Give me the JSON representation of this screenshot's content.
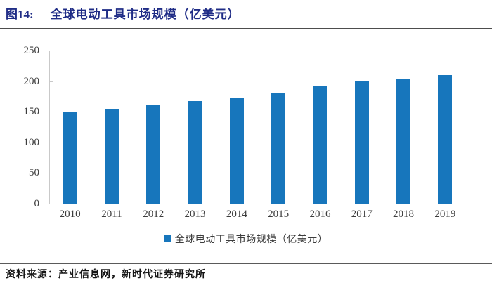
{
  "header": {
    "figure_label": "图14:",
    "title": "全球电动工具市场规模（亿美元）"
  },
  "chart_data": {
    "type": "bar",
    "categories": [
      "2010",
      "2011",
      "2012",
      "2013",
      "2014",
      "2015",
      "2016",
      "2017",
      "2018",
      "2019"
    ],
    "values": [
      150,
      155,
      160,
      167,
      172,
      181,
      193,
      200,
      203,
      210
    ],
    "title": "全球电动工具市场规模（亿美元）",
    "xlabel": "",
    "ylabel": "",
    "ylim": [
      0,
      250
    ],
    "ytick_step": 50,
    "yticks": [
      0,
      50,
      100,
      150,
      200,
      250
    ],
    "grid": false,
    "legend": {
      "label": "全球电动工具市场规模（亿美元）",
      "position": "bottom"
    },
    "colors": {
      "bar": "#1776bc",
      "axis": "#c9c9c9",
      "tick_text": "#3d3d3d"
    }
  },
  "footer": {
    "source": "资料来源：产业信息网，新时代证券研究所"
  }
}
